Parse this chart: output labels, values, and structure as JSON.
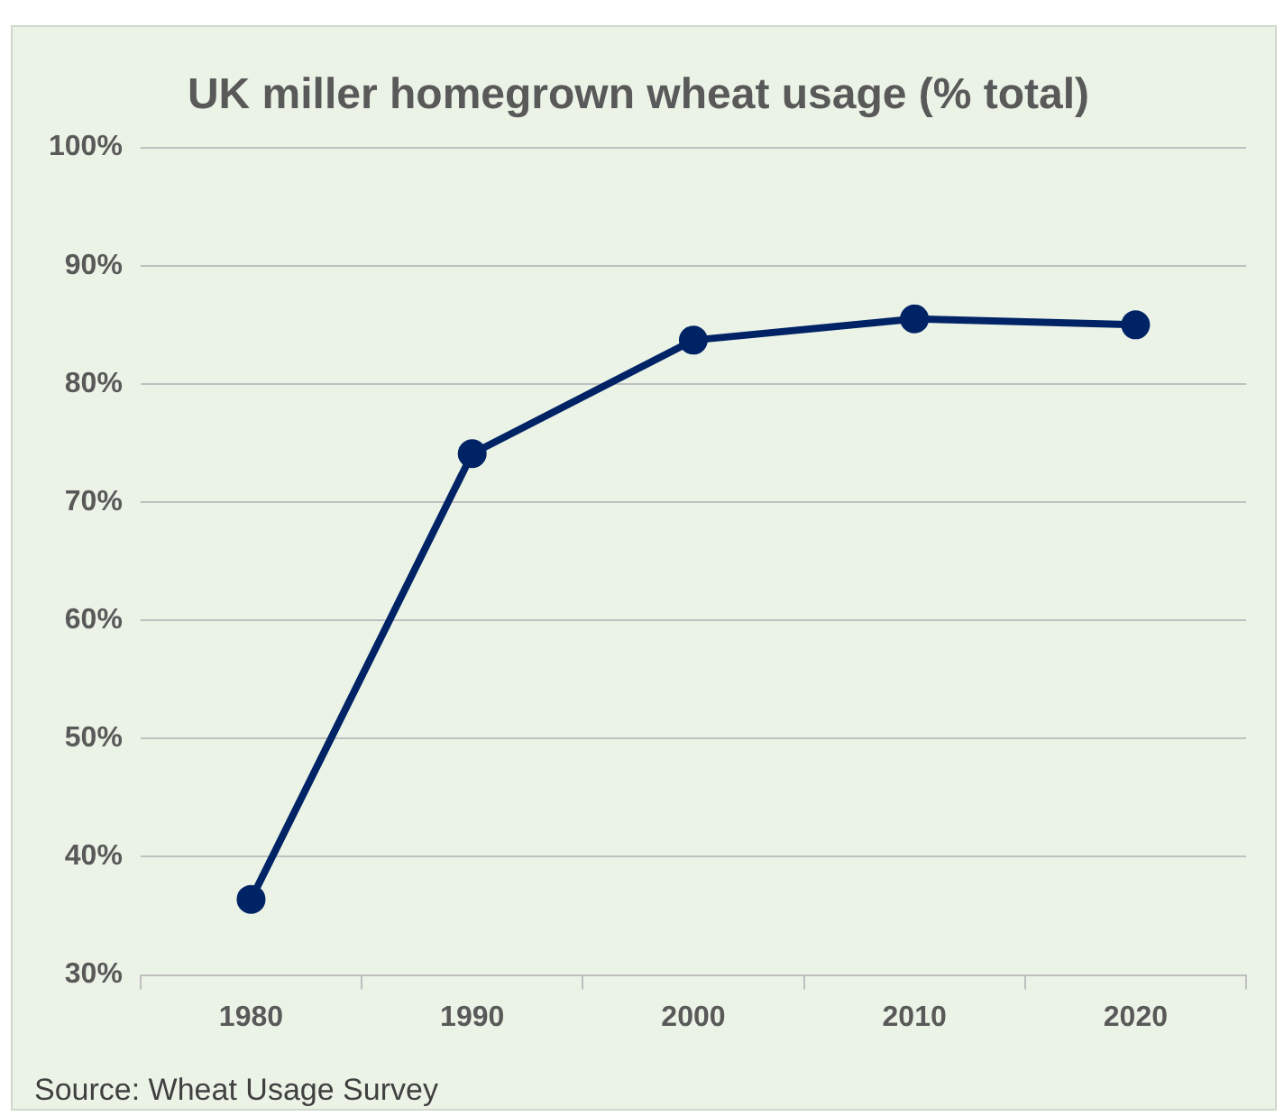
{
  "chart_data": {
    "type": "line",
    "title": "UK miller homegrown wheat usage (% total)",
    "categories": [
      "1980",
      "1990",
      "2000",
      "2010",
      "2020"
    ],
    "series": [
      {
        "color": "#002366",
        "values": [
          36.4,
          74.1,
          83.7,
          85.5,
          85.0
        ]
      }
    ],
    "ylim": [
      30,
      100
    ],
    "yticks": [
      {
        "value": 30,
        "label": "30%"
      },
      {
        "value": 40,
        "label": "40%"
      },
      {
        "value": 50,
        "label": "50%"
      },
      {
        "value": 60,
        "label": "60%"
      },
      {
        "value": 70,
        "label": "70%"
      },
      {
        "value": 80,
        "label": "80%"
      },
      {
        "value": 90,
        "label": "90%"
      },
      {
        "value": 100,
        "label": "100%"
      }
    ],
    "grid": "y",
    "legend": false,
    "marker": "circle",
    "line_style": "solid",
    "annotations": [
      "Source: Wheat Usage Survey"
    ]
  }
}
